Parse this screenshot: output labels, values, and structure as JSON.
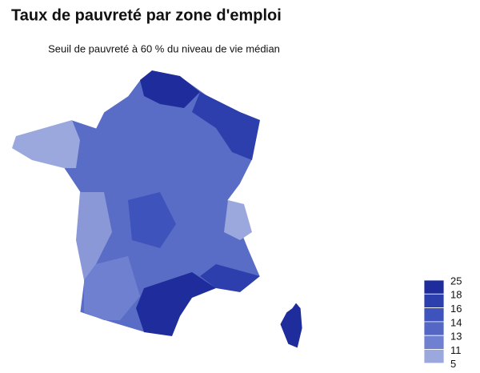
{
  "title": "Taux de pauvreté par zone d'emploi",
  "subtitle": "Seuil de pauvreté à 60 % du niveau de vie médian",
  "legend": {
    "ticks": [
      25,
      18,
      16,
      14,
      13,
      11,
      5
    ],
    "colors": [
      "#1f2d9c",
      "#2c3fad",
      "#3e53bb",
      "#5467c4",
      "#7080d0",
      "#9ba8de"
    ]
  }
}
